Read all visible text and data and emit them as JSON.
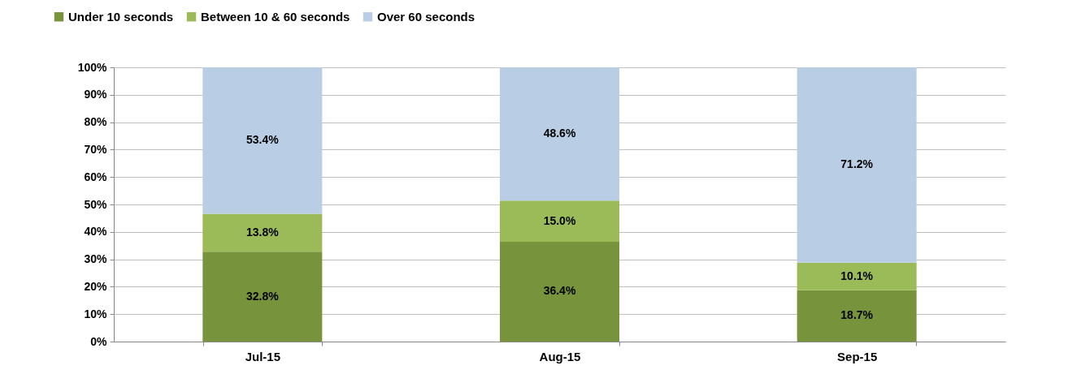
{
  "chart_data": {
    "type": "bar",
    "stacked": true,
    "categories": [
      "Jul-15",
      "Aug-15",
      "Sep-15"
    ],
    "series": [
      {
        "name": "Under 10 seconds",
        "color": "#77933c",
        "values": [
          32.8,
          36.4,
          18.7
        ],
        "value_labels": [
          "32.8%",
          "36.4%",
          "18.7%"
        ]
      },
      {
        "name": "Between 10 & 60 seconds",
        "color": "#9bbb59",
        "values": [
          13.8,
          15.0,
          10.1
        ],
        "value_labels": [
          "13.8%",
          "15.0%",
          "10.1%"
        ]
      },
      {
        "name": "Over 60 seconds",
        "color": "#b9cde5",
        "values": [
          53.4,
          48.6,
          71.2
        ],
        "value_labels": [
          "53.4%",
          "48.6%",
          "71.2%"
        ]
      }
    ],
    "ylim": [
      0,
      100
    ],
    "yticks": [
      {
        "value": 0,
        "label": "0%"
      },
      {
        "value": 10,
        "label": "10%"
      },
      {
        "value": 20,
        "label": "20%"
      },
      {
        "value": 30,
        "label": "30%"
      },
      {
        "value": 40,
        "label": "40%"
      },
      {
        "value": 50,
        "label": "50%"
      },
      {
        "value": 60,
        "label": "60%"
      },
      {
        "value": 70,
        "label": "70%"
      },
      {
        "value": 80,
        "label": "80%"
      },
      {
        "value": 90,
        "label": "90%"
      },
      {
        "value": 100,
        "label": "100%"
      }
    ],
    "grid": "y",
    "legend": "top left"
  }
}
